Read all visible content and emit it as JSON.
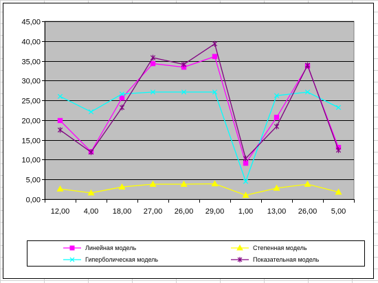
{
  "chart_data": {
    "type": "line",
    "categories": [
      "12,00",
      "4,00",
      "18,00",
      "27,00",
      "26,00",
      "29,00",
      "1,00",
      "13,00",
      "26,00",
      "5,00"
    ],
    "y_ticks": [
      "0,00",
      "5,00",
      "10,00",
      "15,00",
      "20,00",
      "25,00",
      "30,00",
      "35,00",
      "40,00",
      "45,00"
    ],
    "ylim": [
      0,
      45
    ],
    "grid": "horizontal",
    "plot_background": "#c0c0c0",
    "legend_position": "bottom",
    "series": [
      {
        "name": "Линейная модель",
        "color": "#ff00ff",
        "marker": "square",
        "values": [
          19.9,
          12.0,
          25.6,
          34.3,
          33.4,
          36.1,
          9.1,
          20.7,
          33.7,
          13.1
        ]
      },
      {
        "name": "Степенная модель",
        "color": "#ffff00",
        "marker": "triangle",
        "values": [
          2.6,
          1.6,
          3.1,
          3.8,
          3.8,
          3.9,
          1.0,
          2.8,
          3.8,
          1.8
        ]
      },
      {
        "name": "Гиперболическая модель",
        "color": "#00ffff",
        "marker": "x",
        "values": [
          26.0,
          22.1,
          26.6,
          27.1,
          27.1,
          27.1,
          4.5,
          26.2,
          27.1,
          23.2
        ]
      },
      {
        "name": "Показательная модель",
        "color": "#800080",
        "marker": "star",
        "values": [
          17.5,
          11.9,
          23.2,
          35.8,
          34.1,
          39.3,
          10.3,
          18.4,
          33.9,
          12.4
        ]
      }
    ]
  }
}
